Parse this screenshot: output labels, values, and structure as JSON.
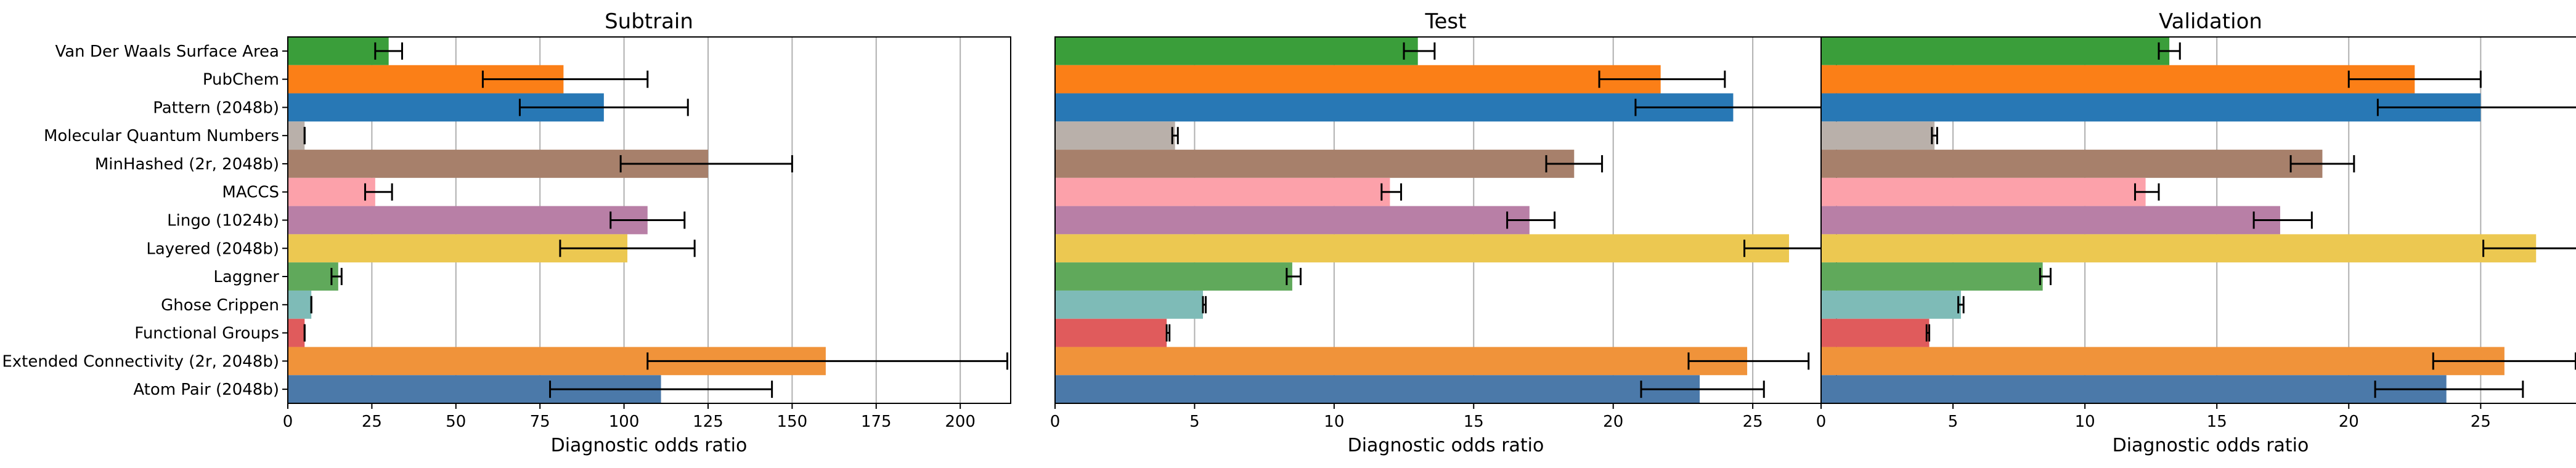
{
  "categories": [
    "Van Der Waals Surface Area",
    "PubChem",
    "Pattern (2048b)",
    "Molecular Quantum Numbers",
    "MinHashed (2r, 2048b)",
    "MACCS",
    "Lingo (1024b)",
    "Layered (2048b)",
    "Laggner",
    "Ghose Crippen",
    "Functional Groups",
    "Extended Connectivity (2r, 2048b)",
    "Atom Pair (2048b)"
  ],
  "colors": [
    "#3a9e3a",
    "#fb7f17",
    "#2878b5",
    "#b9b0aa",
    "#a7806b",
    "#fca1aa",
    "#b87fa6",
    "#ecc851",
    "#60a95b",
    "#7ebbb7",
    "#e05b5c",
    "#f0933a",
    "#4b79a9"
  ],
  "chart_data": [
    {
      "type": "bar",
      "orientation": "horizontal",
      "title": "Subtrain",
      "xlabel": "Diagnostic odds ratio",
      "xlim": [
        0,
        215
      ],
      "xticks": [
        0,
        25,
        50,
        75,
        100,
        125,
        150,
        175,
        200
      ],
      "grid": "x",
      "values": [
        30,
        82,
        94,
        5,
        125,
        26,
        107,
        101,
        15,
        7,
        5,
        160,
        111
      ],
      "errors": [
        [
          26,
          34
        ],
        [
          58,
          107
        ],
        [
          69,
          119
        ],
        [
          5,
          5
        ],
        [
          99,
          150
        ],
        [
          23,
          31
        ],
        [
          96,
          118
        ],
        [
          81,
          121
        ],
        [
          13,
          16
        ],
        [
          7,
          7
        ],
        [
          5,
          5
        ],
        [
          107,
          214
        ],
        [
          78,
          144
        ]
      ]
    },
    {
      "type": "bar",
      "orientation": "horizontal",
      "title": "Test",
      "xlabel": "Diagnostic odds ratio",
      "xlim": [
        0,
        28
      ],
      "xticks": [
        0,
        5,
        10,
        15,
        20,
        25
      ],
      "grid": "x",
      "values": [
        13.0,
        21.7,
        24.3,
        4.3,
        18.6,
        12.0,
        17.0,
        26.3,
        8.5,
        5.3,
        4.0,
        24.8,
        23.1
      ],
      "errors": [
        [
          12.5,
          13.6
        ],
        [
          19.5,
          24.0
        ],
        [
          20.8,
          28.0
        ],
        [
          4.2,
          4.4
        ],
        [
          17.6,
          19.6
        ],
        [
          11.7,
          12.4
        ],
        [
          16.2,
          17.9
        ],
        [
          24.7,
          28.0
        ],
        [
          8.3,
          8.8
        ],
        [
          5.3,
          5.4
        ],
        [
          4.0,
          4.1
        ],
        [
          22.7,
          27.0
        ],
        [
          21.0,
          25.4
        ]
      ]
    },
    {
      "type": "bar",
      "orientation": "horizontal",
      "title": "Validation",
      "xlabel": "Diagnostic odds ratio",
      "xlim": [
        0,
        29.5
      ],
      "xticks": [
        0,
        5,
        10,
        15,
        20,
        25
      ],
      "grid": "x",
      "values": [
        13.2,
        22.5,
        25.0,
        4.3,
        19.0,
        12.3,
        17.4,
        27.1,
        8.4,
        5.3,
        4.1,
        25.9,
        23.7
      ],
      "errors": [
        [
          12.8,
          13.6
        ],
        [
          20.0,
          25.0
        ],
        [
          21.1,
          29.0
        ],
        [
          4.2,
          4.4
        ],
        [
          17.8,
          20.2
        ],
        [
          11.9,
          12.8
        ],
        [
          16.4,
          18.6
        ],
        [
          25.1,
          29.0
        ],
        [
          8.3,
          8.7
        ],
        [
          5.2,
          5.4
        ],
        [
          4.0,
          4.1
        ],
        [
          23.2,
          28.6
        ],
        [
          21.0,
          26.6
        ]
      ]
    }
  ]
}
